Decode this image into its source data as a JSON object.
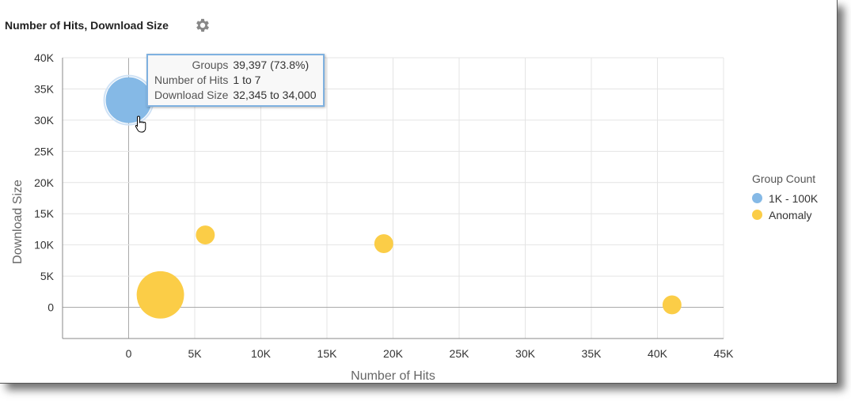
{
  "header": {
    "title": "Number of Hits, Download Size",
    "settings_icon": "gear-icon"
  },
  "tooltip": {
    "rows": [
      {
        "label": "Groups",
        "value": "39,397 (73.8%)"
      },
      {
        "label": "Number of Hits",
        "value": "1 to 7"
      },
      {
        "label": "Download Size",
        "value": "32,345 to 34,000"
      }
    ]
  },
  "legend": {
    "title": "Group Count",
    "items": [
      {
        "label": "1K - 100K",
        "color": "#85b9e6"
      },
      {
        "label": "Anomaly",
        "color": "#fbcd47"
      }
    ]
  },
  "chart_data": {
    "type": "scatter",
    "subtype": "bubble",
    "title": "Number of Hits, Download Size",
    "xlabel": "Number of Hits",
    "ylabel": "Download Size",
    "xlim": [
      -5000,
      45000
    ],
    "ylim": [
      -5000,
      40000
    ],
    "x_ticks": [
      "0",
      "5K",
      "10K",
      "15K",
      "20K",
      "25K",
      "30K",
      "35K",
      "40K",
      "45K"
    ],
    "x_tick_values": [
      0,
      5000,
      10000,
      15000,
      20000,
      25000,
      30000,
      35000,
      40000,
      45000
    ],
    "y_ticks": [
      "0",
      "5K",
      "10K",
      "15K",
      "20K",
      "25K",
      "30K",
      "35K",
      "40K"
    ],
    "y_tick_values": [
      0,
      5000,
      10000,
      15000,
      20000,
      25000,
      30000,
      35000,
      40000
    ],
    "grid": true,
    "legend_position": "right",
    "series": [
      {
        "name": "1K - 100K",
        "color": "#85b9e6",
        "points": [
          {
            "x": 4,
            "y": 33200,
            "size": 39397
          }
        ]
      },
      {
        "name": "Anomaly",
        "color": "#fbcd47",
        "points": [
          {
            "x": 2400,
            "y": 2000,
            "size": 42000
          },
          {
            "x": 5800,
            "y": 11600,
            "size": 6700
          },
          {
            "x": 19300,
            "y": 10200,
            "size": 6700
          },
          {
            "x": 41100,
            "y": 400,
            "size": 6700
          }
        ]
      }
    ]
  }
}
